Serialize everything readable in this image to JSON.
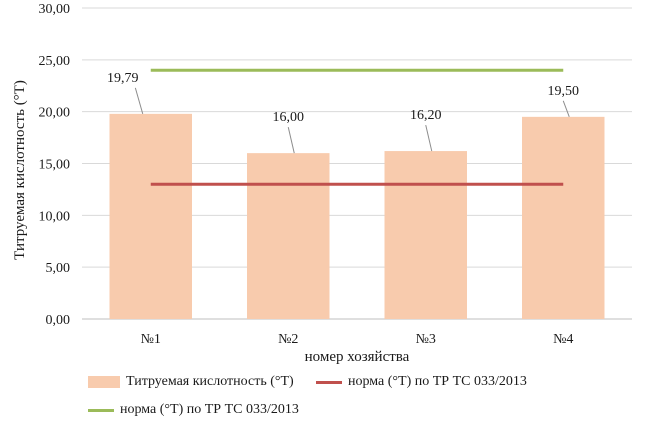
{
  "chart_data": {
    "type": "bar",
    "categories": [
      "№1",
      "№2",
      "№3",
      "№4"
    ],
    "series": [
      {
        "name": "Титруемая кислотность (°Т)",
        "type": "bar",
        "values": [
          19.79,
          16.0,
          16.2,
          19.5
        ],
        "color": "#f8cbad",
        "data_labels": [
          "19,79",
          "16,00",
          "16,20",
          "19,50"
        ]
      },
      {
        "name": "норма (°Т) по ТР ТС 033/2013",
        "type": "line",
        "values": [
          13,
          13,
          13,
          13
        ],
        "color": "#c0504d"
      },
      {
        "name": "норма (°Т) по ТР ТС 033/2013",
        "type": "line",
        "values": [
          24,
          24,
          24,
          24
        ],
        "color": "#9bbb59"
      }
    ],
    "xlabel": "номер хозяйства",
    "ylabel": "Титруемая кислотность (°Т)",
    "ylim": [
      0,
      30
    ],
    "yticks": [
      "0,00",
      "5,00",
      "10,00",
      "15,00",
      "20,00",
      "25,00",
      "30,00"
    ],
    "grid": true,
    "legend_position": "bottom"
  }
}
